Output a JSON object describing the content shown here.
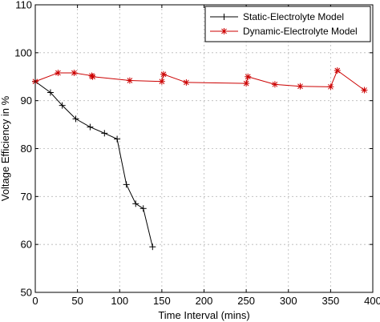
{
  "chart_data": {
    "type": "line",
    "xlabel": "Time Interval (mins)",
    "ylabel": "Voltage Efficiency in %",
    "xlim": [
      0,
      400
    ],
    "ylim": [
      50,
      110
    ],
    "xticks": [
      0,
      50,
      100,
      150,
      200,
      250,
      300,
      350,
      400
    ],
    "yticks": [
      50,
      60,
      70,
      80,
      90,
      100,
      110
    ],
    "grid": true,
    "legend_position": "top-right",
    "series": [
      {
        "name": "Static-Electrolyte Model",
        "color": "#000000",
        "marker": "plus",
        "x": [
          0,
          18,
          32,
          48,
          65,
          82,
          97,
          108,
          119,
          128,
          139
        ],
        "y": [
          94,
          91.7,
          89,
          86.2,
          84.5,
          83.2,
          82,
          72.5,
          68.5,
          67.5,
          59.5
        ]
      },
      {
        "name": "Dynamic-Electrolyte Model",
        "color": "#cc0000",
        "marker": "asterisk",
        "x": [
          0,
          27,
          46,
          67,
          68,
          112,
          150,
          152,
          179,
          250,
          252,
          284,
          314,
          350,
          358,
          390
        ],
        "y": [
          94,
          95.8,
          95.8,
          95.2,
          95,
          94.2,
          94,
          95.5,
          93.8,
          93.6,
          95,
          93.4,
          93,
          92.9,
          96.3,
          92.2
        ]
      }
    ]
  }
}
